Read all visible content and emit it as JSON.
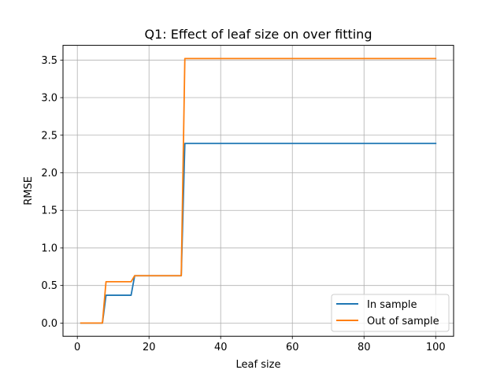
{
  "chart_data": {
    "type": "line",
    "title": "Q1: Effect of leaf size on over fitting",
    "xlabel": "Leaf size",
    "ylabel": "RMSE",
    "xlim": [
      -4,
      105
    ],
    "ylim": [
      -0.176,
      3.696
    ],
    "xticks": [
      0,
      20,
      40,
      60,
      80,
      100
    ],
    "xtick_labels": [
      "0",
      "20",
      "40",
      "60",
      "80",
      "100"
    ],
    "yticks": [
      0.0,
      0.5,
      1.0,
      1.5,
      2.0,
      2.5,
      3.0,
      3.5
    ],
    "ytick_labels": [
      "0.0",
      "0.5",
      "1.0",
      "1.5",
      "2.0",
      "2.5",
      "3.0",
      "3.5"
    ],
    "grid": true,
    "legend_position": "lower-right",
    "x": [
      1,
      2,
      3,
      4,
      5,
      6,
      7,
      8,
      9,
      10,
      11,
      12,
      13,
      14,
      15,
      16,
      17,
      18,
      19,
      20,
      21,
      22,
      23,
      24,
      25,
      26,
      27,
      28,
      29,
      30,
      31,
      32,
      33,
      34,
      35,
      36,
      37,
      38,
      39,
      40,
      41,
      42,
      43,
      44,
      45,
      46,
      47,
      48,
      49,
      50,
      51,
      52,
      53,
      54,
      55,
      56,
      57,
      58,
      59,
      60,
      61,
      62,
      63,
      64,
      65,
      66,
      67,
      68,
      69,
      70,
      71,
      72,
      73,
      74,
      75,
      76,
      77,
      78,
      79,
      80,
      81,
      82,
      83,
      84,
      85,
      86,
      87,
      88,
      89,
      90,
      91,
      92,
      93,
      94,
      95,
      96,
      97,
      98,
      99,
      100
    ],
    "segments": [
      {
        "x_from": 1,
        "x_to": 7,
        "in_sample": 0.0,
        "out_of_sample": 0.0
      },
      {
        "x_from": 8,
        "x_to": 15,
        "in_sample": 0.37,
        "out_of_sample": 0.55
      },
      {
        "x_from": 16,
        "x_to": 29,
        "in_sample": 0.63,
        "out_of_sample": 0.63
      },
      {
        "x_from": 30,
        "x_to": 100,
        "in_sample": 2.39,
        "out_of_sample": 3.52
      }
    ],
    "series": [
      {
        "name": "In sample",
        "color": "#1f77b4"
      },
      {
        "name": "Out of sample",
        "color": "#ff7f0e"
      }
    ]
  }
}
